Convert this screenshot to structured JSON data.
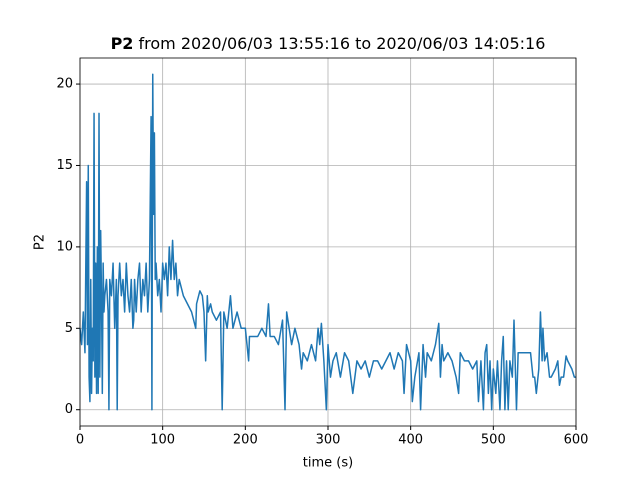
{
  "chart_data": {
    "type": "line",
    "title": {
      "name": "P2",
      "text": "from 2020/06/03 13:55:16 to 2020/06/03 14:05:16"
    },
    "xlabel": "time (s)",
    "ylabel": "P2",
    "color": "#1f77b4",
    "grid": true,
    "xlim": [
      0,
      600
    ],
    "ylim": [
      -1,
      21.6
    ],
    "xticks": [
      0,
      100,
      200,
      300,
      400,
      500,
      600
    ],
    "yticks": [
      0,
      5,
      10,
      15,
      20
    ],
    "x": [
      0,
      2,
      4,
      6,
      8,
      9,
      10,
      11,
      12,
      13,
      14,
      15,
      16,
      17,
      18,
      19,
      20,
      21,
      22,
      23,
      24,
      25,
      26,
      27,
      28,
      29,
      30,
      32,
      34,
      35,
      36,
      38,
      40,
      42,
      44,
      45,
      46,
      48,
      50,
      52,
      54,
      56,
      58,
      60,
      62,
      64,
      65,
      66,
      68,
      70,
      72,
      74,
      76,
      78,
      80,
      82,
      84,
      85,
      86,
      87,
      88,
      89,
      90,
      91,
      92,
      94,
      96,
      98,
      100,
      102,
      104,
      106,
      108,
      110,
      112,
      114,
      116,
      118,
      120,
      125,
      130,
      135,
      140,
      141,
      145,
      148,
      150,
      152,
      154,
      155,
      158,
      160,
      165,
      170,
      172,
      174,
      178,
      182,
      185,
      190,
      195,
      200,
      202,
      204,
      205,
      210,
      215,
      220,
      225,
      228,
      230,
      235,
      240,
      245,
      248,
      250,
      253,
      256,
      260,
      265,
      268,
      270,
      275,
      280,
      285,
      288,
      290,
      292,
      295,
      298,
      300,
      303,
      306,
      310,
      315,
      320,
      325,
      330,
      335,
      340,
      345,
      350,
      355,
      360,
      365,
      370,
      375,
      380,
      385,
      390,
      392,
      395,
      400,
      402,
      405,
      410,
      412,
      415,
      418,
      420,
      425,
      430,
      434,
      436,
      438,
      440,
      445,
      450,
      455,
      458,
      460,
      465,
      470,
      475,
      480,
      482,
      485,
      488,
      490,
      492,
      494,
      496,
      498,
      500,
      503,
      505,
      508,
      510,
      512,
      514,
      516,
      518,
      520,
      523,
      525,
      528,
      530,
      535,
      540,
      545,
      548,
      550,
      552,
      555,
      557,
      559,
      560,
      562,
      565,
      568,
      570,
      575,
      578,
      580,
      582,
      585,
      588,
      590,
      595,
      598,
      600
    ],
    "values": [
      5,
      4,
      6,
      3.5,
      14,
      4,
      15,
      2,
      0.5,
      8,
      1,
      5,
      3,
      18.2,
      2,
      9,
      1,
      10,
      1,
      18.2,
      2,
      11,
      7,
      1,
      9,
      6,
      7,
      8,
      6,
      0,
      8,
      7,
      9,
      5,
      8,
      0,
      7,
      9,
      7,
      8,
      6,
      9,
      7,
      6,
      8,
      5,
      5.5,
      8,
      6,
      8,
      9,
      6,
      8,
      7,
      9,
      6,
      8,
      13,
      18,
      0,
      20.6,
      12,
      17,
      8,
      9,
      7,
      8,
      6,
      9,
      8,
      9,
      7,
      10,
      8,
      10.4,
      8,
      9,
      7,
      8,
      7,
      6.5,
      6,
      5,
      6.5,
      7.3,
      7,
      6,
      3,
      7,
      6,
      6.5,
      6,
      5.5,
      6,
      0,
      6,
      5,
      7,
      5,
      6,
      5,
      5,
      4,
      3,
      4.5,
      4.5,
      4.5,
      5,
      4.5,
      6.5,
      4.5,
      4.5,
      4,
      5.5,
      0,
      6,
      5,
      4,
      5,
      4,
      2.5,
      3.5,
      3,
      4,
      3,
      5,
      4,
      5.3,
      3,
      0,
      4,
      2,
      3,
      3.5,
      2,
      3.5,
      3,
      1,
      3,
      2.5,
      3,
      2,
      3,
      3,
      2.5,
      3,
      3.5,
      2.5,
      3.5,
      3,
      1,
      4,
      3,
      0.5,
      2,
      3.5,
      0,
      4,
      2,
      3.5,
      3,
      4,
      5.3,
      2,
      4,
      3,
      3.5,
      3,
      2,
      1,
      3.5,
      3,
      3,
      2.5,
      3,
      0.5,
      3,
      0,
      3.5,
      4,
      1,
      3,
      0,
      2.5,
      1,
      3,
      0,
      3,
      4.5,
      0,
      3,
      0,
      3,
      2,
      5.5,
      0,
      3.5,
      3.5,
      3.5,
      3.5,
      2,
      2,
      1,
      2.5,
      6,
      3,
      5,
      3,
      3.5,
      2,
      2,
      2.5,
      3,
      1.5,
      2,
      2,
      3.3,
      3,
      2.5,
      2,
      2
    ]
  }
}
